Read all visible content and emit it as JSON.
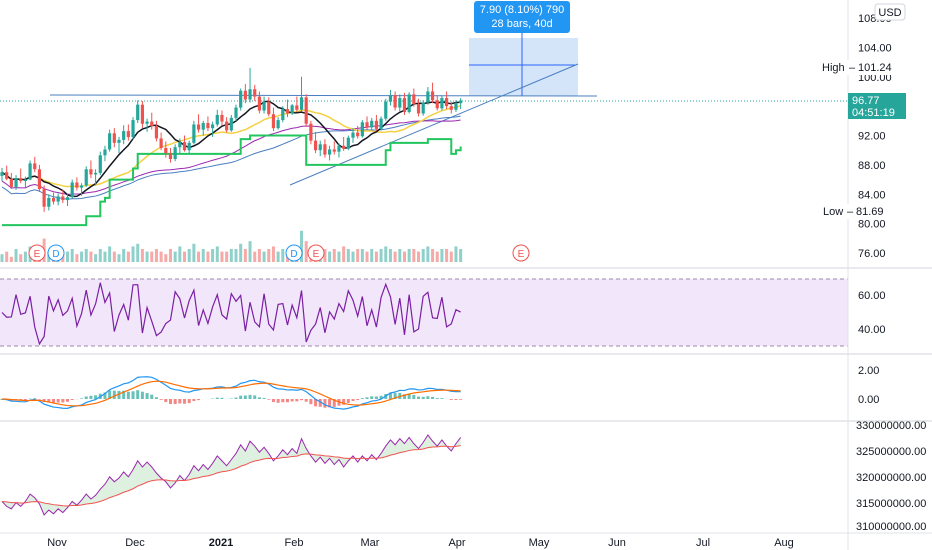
{
  "chart_data": {
    "type": "candlestick",
    "symbol_currency": "USD",
    "x_labels": [
      "Nov",
      "Dec",
      "2021",
      "Feb",
      "Mar",
      "Apr",
      "May",
      "Jun",
      "Jul",
      "Aug"
    ],
    "price_panel": {
      "y_ticks": [
        "108.00",
        "104.00",
        "100.00",
        "92.00",
        "88.00",
        "84.00",
        "80.00",
        "76.00"
      ],
      "last_price": "96.77",
      "countdown": "04:51:19",
      "high_label": "High",
      "high_value": "101.24",
      "low_label": "Low",
      "low_value": "81.69",
      "measure_line1": "7.90 (8.10%) 790",
      "measure_line2": "28 bars, 40d",
      "event_markers": [
        "E",
        "D",
        "D",
        "E",
        "E"
      ],
      "candles_ohlc": [
        [
          86.5,
          87.6,
          85.8,
          87.0
        ],
        [
          87.0,
          87.9,
          85.9,
          86.1
        ],
        [
          86.1,
          86.9,
          84.7,
          85.0
        ],
        [
          85.0,
          86.6,
          84.6,
          86.2
        ],
        [
          86.2,
          87.5,
          85.5,
          85.8
        ],
        [
          85.8,
          86.4,
          84.8,
          86.0
        ],
        [
          86.0,
          88.6,
          85.9,
          88.2
        ],
        [
          88.2,
          89.1,
          87.0,
          87.4
        ],
        [
          87.4,
          88.0,
          84.3,
          84.7
        ],
        [
          84.7,
          85.2,
          81.6,
          82.3
        ],
        [
          82.3,
          84.0,
          81.8,
          83.5
        ],
        [
          83.5,
          84.2,
          82.6,
          83.0
        ],
        [
          83.0,
          84.1,
          82.5,
          83.7
        ],
        [
          83.7,
          84.6,
          82.8,
          83.2
        ],
        [
          83.2,
          84.0,
          82.4,
          83.6
        ],
        [
          83.6,
          86.0,
          83.4,
          85.6
        ],
        [
          85.6,
          86.3,
          84.5,
          84.9
        ],
        [
          84.9,
          85.5,
          83.8,
          85.2
        ],
        [
          85.2,
          87.8,
          85.0,
          87.4
        ],
        [
          87.4,
          88.6,
          86.2,
          86.7
        ],
        [
          86.7,
          87.4,
          85.2,
          86.9
        ],
        [
          86.9,
          89.8,
          86.6,
          89.3
        ],
        [
          89.3,
          90.6,
          88.5,
          90.1
        ],
        [
          90.1,
          92.8,
          89.8,
          92.3
        ],
        [
          92.3,
          93.0,
          90.4,
          91.0
        ],
        [
          91.0,
          91.8,
          89.6,
          91.4
        ],
        [
          91.4,
          93.4,
          90.8,
          92.6
        ],
        [
          92.6,
          93.5,
          91.3,
          91.8
        ],
        [
          91.8,
          94.5,
          91.5,
          94.1
        ],
        [
          94.1,
          96.8,
          93.7,
          96.2
        ],
        [
          96.2,
          96.7,
          93.0,
          93.6
        ],
        [
          93.6,
          94.3,
          92.5,
          93.9
        ],
        [
          93.9,
          95.1,
          92.8,
          93.3
        ],
        [
          93.3,
          94.0,
          91.2,
          91.6
        ],
        [
          91.6,
          92.4,
          90.0,
          90.3
        ],
        [
          90.3,
          91.2,
          89.0,
          89.6
        ],
        [
          89.6,
          90.3,
          88.3,
          88.8
        ],
        [
          88.8,
          90.8,
          88.5,
          90.4
        ],
        [
          90.4,
          91.6,
          89.6,
          91.1
        ],
        [
          91.1,
          92.0,
          89.8,
          90.0
        ],
        [
          90.0,
          91.3,
          89.5,
          91.0
        ],
        [
          91.0,
          94.0,
          90.8,
          93.5
        ],
        [
          93.5,
          94.9,
          92.4,
          92.8
        ],
        [
          92.8,
          94.0,
          92.0,
          93.7
        ],
        [
          93.7,
          94.6,
          92.6,
          93.0
        ],
        [
          93.0,
          93.9,
          91.8,
          93.5
        ],
        [
          93.5,
          95.5,
          93.2,
          94.8
        ],
        [
          94.8,
          95.4,
          93.4,
          93.9
        ],
        [
          93.9,
          94.5,
          92.4,
          92.7
        ],
        [
          92.7,
          94.8,
          92.5,
          94.4
        ],
        [
          94.4,
          96.2,
          94.0,
          95.8
        ],
        [
          95.8,
          98.4,
          95.4,
          98.1
        ],
        [
          98.1,
          99.0,
          96.4,
          96.9
        ],
        [
          96.9,
          101.2,
          96.5,
          98.3
        ],
        [
          98.3,
          98.9,
          96.7,
          97.3
        ],
        [
          97.3,
          98.0,
          95.0,
          95.4
        ],
        [
          95.4,
          97.3,
          95.0,
          96.6
        ],
        [
          96.6,
          97.2,
          94.6,
          94.9
        ],
        [
          94.9,
          95.8,
          92.6,
          93.0
        ],
        [
          93.0,
          94.5,
          92.8,
          94.1
        ],
        [
          94.1,
          96.0,
          93.8,
          95.6
        ],
        [
          95.6,
          96.9,
          94.5,
          95.0
        ],
        [
          95.0,
          96.3,
          94.8,
          96.1
        ],
        [
          96.1,
          97.3,
          95.2,
          95.5
        ],
        [
          95.5,
          100.0,
          95.3,
          97.2
        ],
        [
          97.2,
          97.6,
          93.2,
          93.6
        ],
        [
          93.6,
          94.0,
          90.8,
          91.3
        ],
        [
          91.3,
          92.5,
          89.6,
          90.0
        ],
        [
          90.0,
          91.3,
          89.2,
          90.8
        ],
        [
          90.8,
          91.5,
          89.0,
          89.4
        ],
        [
          89.4,
          90.6,
          88.6,
          90.1
        ],
        [
          90.1,
          91.2,
          89.4,
          89.8
        ],
        [
          89.8,
          90.9,
          89.0,
          90.6
        ],
        [
          90.6,
          91.8,
          89.9,
          90.2
        ],
        [
          90.2,
          92.0,
          90.0,
          91.7
        ],
        [
          91.7,
          93.0,
          91.0,
          92.4
        ],
        [
          92.4,
          93.3,
          91.6,
          91.9
        ],
        [
          91.9,
          94.1,
          91.7,
          93.8
        ],
        [
          93.8,
          94.6,
          92.8,
          93.1
        ],
        [
          93.1,
          94.4,
          92.7,
          94.0
        ],
        [
          94.0,
          94.8,
          92.6,
          92.9
        ],
        [
          92.9,
          94.6,
          92.7,
          94.3
        ],
        [
          94.3,
          97.0,
          94.0,
          96.6
        ],
        [
          96.6,
          98.2,
          96.1,
          97.5
        ],
        [
          97.5,
          98.0,
          95.4,
          95.8
        ],
        [
          95.8,
          97.6,
          95.3,
          97.1
        ],
        [
          97.1,
          97.8,
          94.8,
          95.2
        ],
        [
          95.2,
          97.9,
          95.0,
          97.6
        ],
        [
          97.6,
          98.4,
          95.9,
          96.3
        ],
        [
          96.3,
          97.0,
          94.6,
          95.0
        ],
        [
          95.0,
          96.8,
          94.7,
          96.5
        ],
        [
          96.5,
          98.6,
          96.2,
          98.0
        ],
        [
          98.0,
          99.2,
          96.4,
          96.8
        ],
        [
          96.8,
          97.5,
          95.4,
          95.7
        ],
        [
          95.7,
          97.4,
          95.4,
          97.1
        ],
        [
          97.1,
          98.0,
          95.6,
          96.0
        ],
        [
          96.0,
          96.6,
          95.0,
          95.5
        ],
        [
          95.5,
          96.8,
          95.2,
          96.4
        ],
        [
          96.4,
          97.1,
          95.6,
          96.77
        ]
      ],
      "volume": [
        3,
        4,
        2,
        5,
        3,
        4,
        6,
        3,
        5,
        9,
        4,
        3,
        4,
        3,
        4,
        5,
        3,
        4,
        5,
        4,
        3,
        5,
        4,
        6,
        4,
        3,
        5,
        4,
        6,
        7,
        5,
        4,
        4,
        5,
        4,
        3,
        5,
        4,
        6,
        4,
        5,
        7,
        4,
        5,
        4,
        5,
        6,
        4,
        4,
        5,
        5,
        7,
        5,
        8,
        4,
        5,
        4,
        5,
        6,
        4,
        5,
        4,
        5,
        4,
        12,
        8,
        6,
        5,
        4,
        5,
        4,
        5,
        4,
        6,
        5,
        4,
        5,
        5,
        4,
        5,
        4,
        5,
        6,
        5,
        4,
        5,
        4,
        5,
        5,
        4,
        5,
        6,
        5,
        4,
        5,
        5,
        4,
        6,
        5,
        4
      ]
    },
    "rsi_panel": {
      "y_ticks": [
        "60.00",
        "40.00"
      ]
    },
    "macd_panel": {
      "y_ticks": [
        "2.00",
        "0.00"
      ]
    },
    "obv_panel": {
      "y_ticks": [
        "330000000.00",
        "325000000.00",
        "320000000.00",
        "315000000.00",
        "310000000.00"
      ]
    }
  }
}
